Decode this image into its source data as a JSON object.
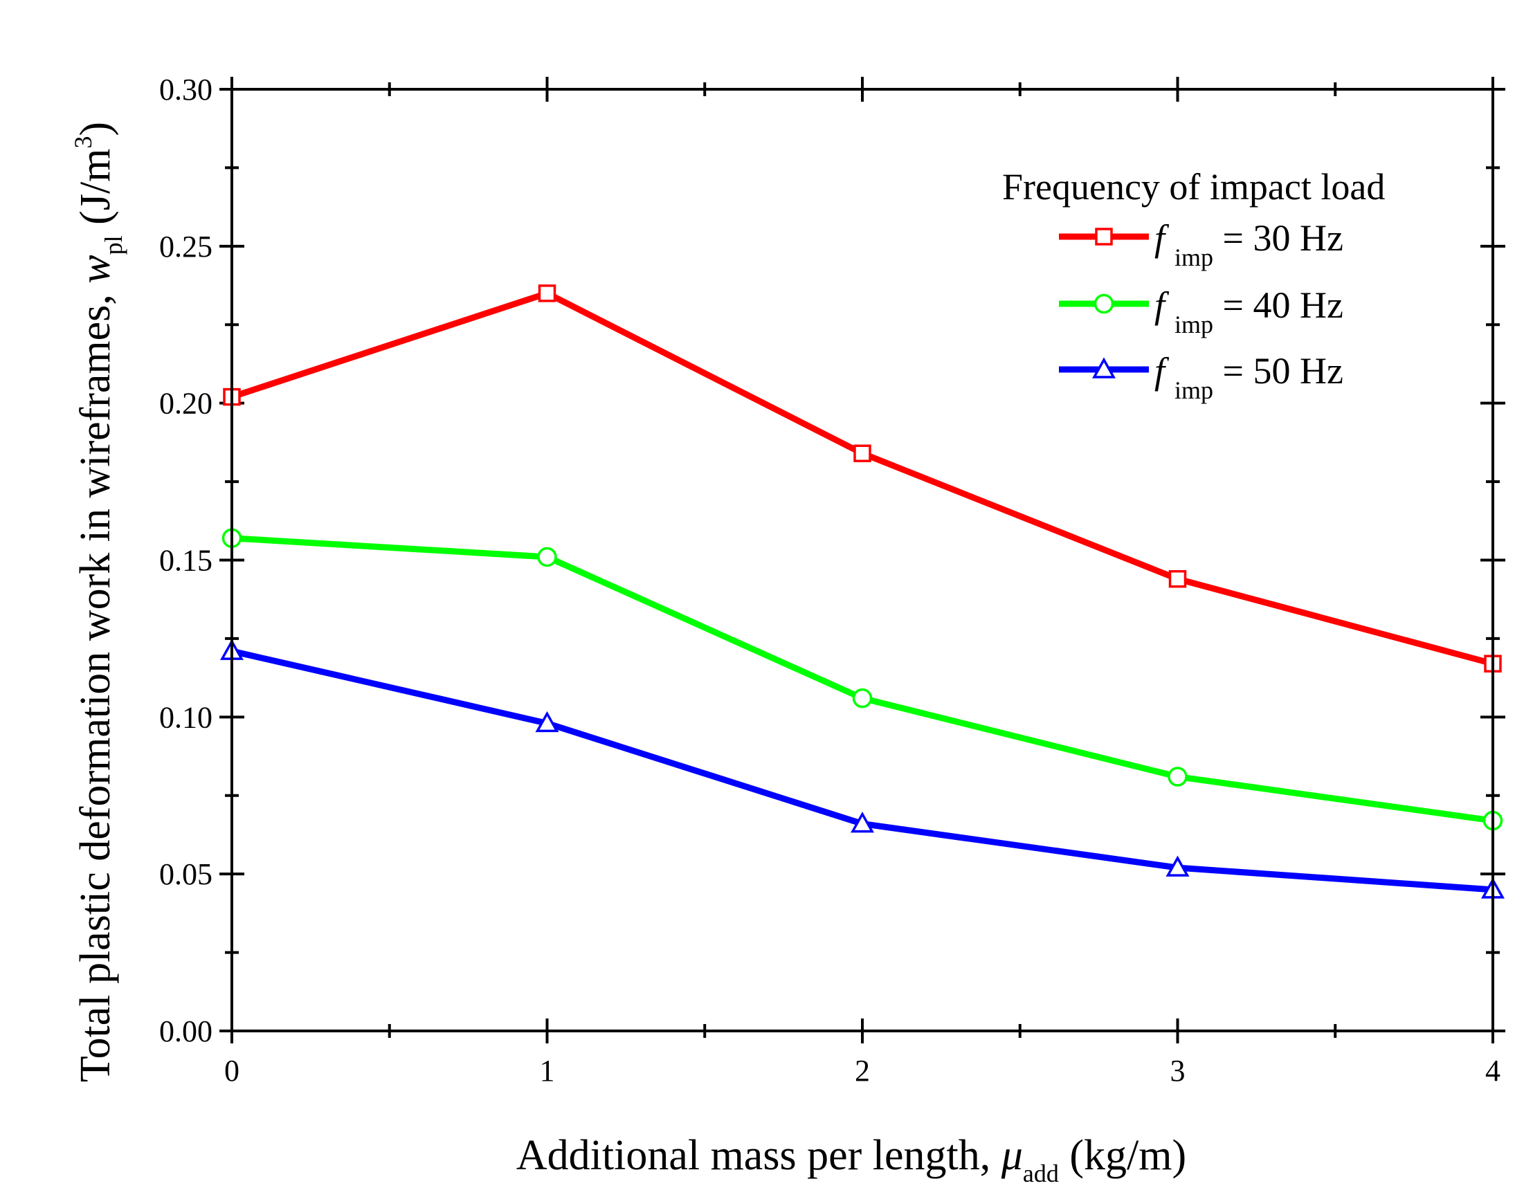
{
  "chart_data": {
    "type": "line",
    "title": "",
    "xlabel": {
      "main": "Additional mass per length, ",
      "symbol": "μ",
      "subscript": "add",
      "unit": " (kg/m)"
    },
    "ylabel": {
      "main": "Total plastic deformation work in wireframes, ",
      "symbol": "w",
      "subscript": "pl",
      "unit_prefix": " (J/m",
      "superscript": "3",
      "unit_suffix": ")"
    },
    "x": [
      0,
      1,
      2,
      3,
      4
    ],
    "xlim": [
      0,
      4
    ],
    "ylim": [
      0.0,
      0.3
    ],
    "xticks": [
      "0",
      "1",
      "2",
      "3",
      "4"
    ],
    "yticks": [
      "0.00",
      "0.05",
      "0.10",
      "0.15",
      "0.20",
      "0.25",
      "0.30"
    ],
    "legend": {
      "title": "Frequency of impact load",
      "placement": "top-right"
    },
    "series": [
      {
        "name": "f imp = 30 Hz",
        "symbol": "f",
        "subscript": "imp",
        "value_label": " = 30 Hz",
        "color": "#ff0000",
        "marker": "square",
        "values": [
          0.202,
          0.235,
          0.184,
          0.144,
          0.117
        ]
      },
      {
        "name": "f imp = 40 Hz",
        "symbol": "f",
        "subscript": "imp",
        "value_label": " = 40 Hz",
        "color": "#00ff00",
        "marker": "circle",
        "values": [
          0.157,
          0.151,
          0.106,
          0.081,
          0.067
        ]
      },
      {
        "name": "f imp = 50 Hz",
        "symbol": "f",
        "subscript": "imp",
        "value_label": " = 50 Hz",
        "color": "#0000ff",
        "marker": "triangle",
        "values": [
          0.121,
          0.098,
          0.066,
          0.052,
          0.045
        ]
      }
    ]
  }
}
